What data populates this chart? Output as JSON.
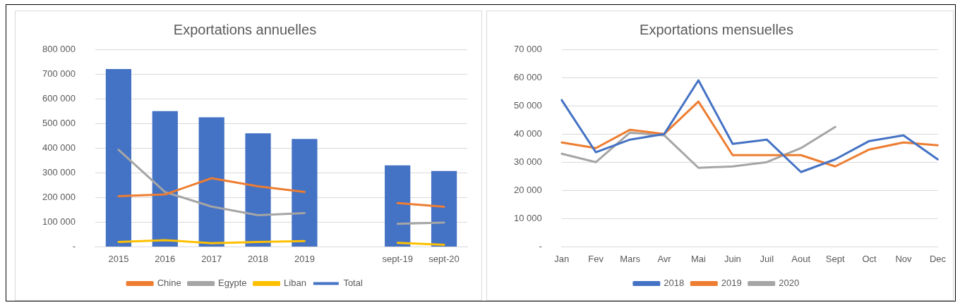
{
  "chart_data": [
    {
      "type": "bar",
      "title": "Exportations annuelles",
      "categories": [
        "2015",
        "2016",
        "2017",
        "2018",
        "2019",
        null,
        "sept-19",
        "sept-20"
      ],
      "series": [
        {
          "name": "Total",
          "type": "bar",
          "color": "#4472c4",
          "values": [
            720000,
            550000,
            525000,
            460000,
            437000,
            null,
            330000,
            307000
          ]
        },
        {
          "name": "Chine",
          "type": "line",
          "color": "#ed7d31",
          "values": [
            205000,
            212000,
            278000,
            245000,
            222000,
            null,
            177000,
            162000
          ]
        },
        {
          "name": "Egypte",
          "type": "line",
          "color": "#a5a5a5",
          "values": [
            393000,
            222000,
            163000,
            128000,
            137000,
            null,
            93000,
            98000
          ]
        },
        {
          "name": "Liban",
          "type": "line",
          "color": "#ffc000",
          "values": [
            20000,
            27000,
            15000,
            20000,
            23000,
            null,
            16000,
            8000
          ]
        }
      ],
      "ylim": [
        0,
        800000
      ],
      "yticks": [
        {
          "value": 0,
          "label": "-"
        },
        {
          "value": 100000,
          "label": "100 000"
        },
        {
          "value": 200000,
          "label": "200 000"
        },
        {
          "value": 300000,
          "label": "300 000"
        },
        {
          "value": 400000,
          "label": "400 000"
        },
        {
          "value": 500000,
          "label": "500 000"
        },
        {
          "value": 600000,
          "label": "600 000"
        },
        {
          "value": 700000,
          "label": "700 000"
        },
        {
          "value": 800000,
          "label": "800 000"
        }
      ],
      "grid": "y",
      "legend": "bottom",
      "marker": "none",
      "line_style": "solid"
    },
    {
      "type": "line",
      "title": "Exportations mensuelles",
      "categories": [
        "Jan",
        "Fev",
        "Mars",
        "Avr",
        "Mai",
        "Juin",
        "Juil",
        "Aout",
        "Sept",
        "Oct",
        "Nov",
        "Dec"
      ],
      "series": [
        {
          "name": "2018",
          "color": "#4472c4",
          "values": [
            52000,
            33500,
            38000,
            40000,
            59000,
            36500,
            38000,
            26500,
            31000,
            37500,
            39500,
            31000
          ]
        },
        {
          "name": "2019",
          "color": "#ed7d31",
          "values": [
            37000,
            35000,
            41500,
            40000,
            51500,
            32500,
            32500,
            32500,
            28500,
            34500,
            37000,
            36000
          ]
        },
        {
          "name": "2020",
          "color": "#a5a5a5",
          "values": [
            33000,
            30000,
            40500,
            39500,
            28000,
            28500,
            30000,
            35000,
            42500,
            null,
            null,
            null
          ]
        }
      ],
      "ylim": [
        0,
        70000
      ],
      "yticks": [
        {
          "value": 0,
          "label": "-"
        },
        {
          "value": 10000,
          "label": "10 000"
        },
        {
          "value": 20000,
          "label": "20 000"
        },
        {
          "value": 30000,
          "label": "30 000"
        },
        {
          "value": 40000,
          "label": "40 000"
        },
        {
          "value": 50000,
          "label": "50 000"
        },
        {
          "value": 60000,
          "label": "60 000"
        },
        {
          "value": 70000,
          "label": "70 000"
        }
      ],
      "grid": "y",
      "legend": "bottom",
      "marker": "none",
      "line_style": "solid"
    }
  ]
}
